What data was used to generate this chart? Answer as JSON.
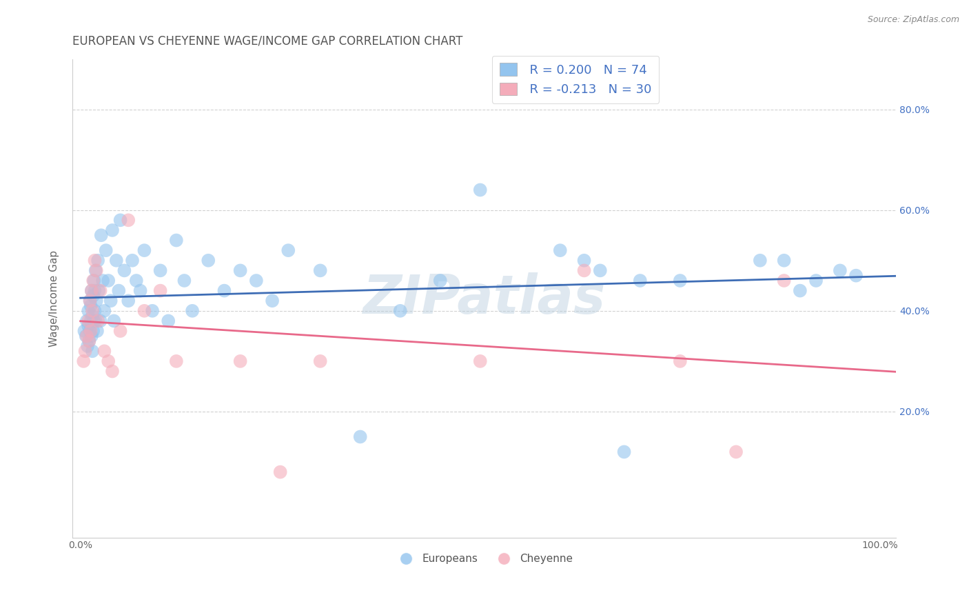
{
  "title": "EUROPEAN VS CHEYENNE WAGE/INCOME GAP CORRELATION CHART",
  "source_text": "Source: ZipAtlas.com",
  "ylabel": "Wage/Income Gap",
  "xlabel": "",
  "xlim": [
    -0.01,
    1.02
  ],
  "ylim": [
    -0.05,
    0.9
  ],
  "x_ticks": [
    0.0,
    0.25,
    0.5,
    0.75,
    1.0
  ],
  "x_tick_labels": [
    "0.0%",
    "",
    "",
    "",
    "100.0%"
  ],
  "y_ticks": [
    0.2,
    0.4,
    0.6,
    0.8
  ],
  "y_tick_labels_left": [
    "",
    "",
    "",
    ""
  ],
  "y_tick_labels_right": [
    "20.0%",
    "40.0%",
    "60.0%",
    "80.0%"
  ],
  "european_color": "#93C4EE",
  "cheyenne_color": "#F4ACBA",
  "trend_blue": "#3E6DB5",
  "trend_pink": "#E8698A",
  "legend_label_european": "Europeans",
  "legend_label_cheyenne": "Cheyenne",
  "legend_r_european": "R = 0.200",
  "legend_r_cheyenne": "R = -0.213",
  "legend_n_european": "N = 74",
  "legend_n_cheyenne": "N = 30",
  "watermark": "ZIPatlas",
  "background_color": "#FFFFFF",
  "grid_color": "#CCCCCC",
  "title_color": "#555555",
  "title_fontsize": 12,
  "axis_label_color": "#666666",
  "legend_text_color": "#4472C4",
  "european_x": [
    0.005,
    0.007,
    0.008,
    0.009,
    0.01,
    0.01,
    0.011,
    0.012,
    0.012,
    0.013,
    0.013,
    0.014,
    0.014,
    0.015,
    0.015,
    0.016,
    0.016,
    0.017,
    0.017,
    0.018,
    0.018,
    0.019,
    0.019,
    0.02,
    0.021,
    0.022,
    0.023,
    0.025,
    0.026,
    0.028,
    0.03,
    0.032,
    0.035,
    0.038,
    0.04,
    0.042,
    0.045,
    0.048,
    0.05,
    0.055,
    0.06,
    0.065,
    0.07,
    0.075,
    0.08,
    0.09,
    0.1,
    0.11,
    0.12,
    0.13,
    0.14,
    0.16,
    0.18,
    0.2,
    0.22,
    0.24,
    0.26,
    0.3,
    0.35,
    0.4,
    0.45,
    0.5,
    0.6,
    0.63,
    0.65,
    0.68,
    0.7,
    0.75,
    0.85,
    0.88,
    0.9,
    0.92,
    0.95,
    0.97
  ],
  "european_y": [
    0.36,
    0.35,
    0.38,
    0.33,
    0.37,
    0.4,
    0.34,
    0.36,
    0.42,
    0.38,
    0.41,
    0.35,
    0.44,
    0.32,
    0.39,
    0.36,
    0.43,
    0.38,
    0.46,
    0.4,
    0.44,
    0.38,
    0.48,
    0.42,
    0.36,
    0.5,
    0.44,
    0.38,
    0.55,
    0.46,
    0.4,
    0.52,
    0.46,
    0.42,
    0.56,
    0.38,
    0.5,
    0.44,
    0.58,
    0.48,
    0.42,
    0.5,
    0.46,
    0.44,
    0.52,
    0.4,
    0.48,
    0.38,
    0.54,
    0.46,
    0.4,
    0.5,
    0.44,
    0.48,
    0.46,
    0.42,
    0.52,
    0.48,
    0.15,
    0.4,
    0.46,
    0.64,
    0.52,
    0.5,
    0.48,
    0.12,
    0.46,
    0.46,
    0.5,
    0.5,
    0.44,
    0.46,
    0.48,
    0.47
  ],
  "cheyenne_x": [
    0.004,
    0.006,
    0.008,
    0.01,
    0.011,
    0.012,
    0.013,
    0.014,
    0.015,
    0.016,
    0.018,
    0.02,
    0.022,
    0.025,
    0.03,
    0.035,
    0.04,
    0.05,
    0.06,
    0.08,
    0.1,
    0.12,
    0.2,
    0.25,
    0.3,
    0.5,
    0.63,
    0.75,
    0.82,
    0.88
  ],
  "cheyenne_y": [
    0.3,
    0.32,
    0.35,
    0.38,
    0.34,
    0.42,
    0.36,
    0.44,
    0.4,
    0.46,
    0.5,
    0.48,
    0.38,
    0.44,
    0.32,
    0.3,
    0.28,
    0.36,
    0.58,
    0.4,
    0.44,
    0.3,
    0.3,
    0.08,
    0.3,
    0.3,
    0.48,
    0.3,
    0.12,
    0.46
  ]
}
